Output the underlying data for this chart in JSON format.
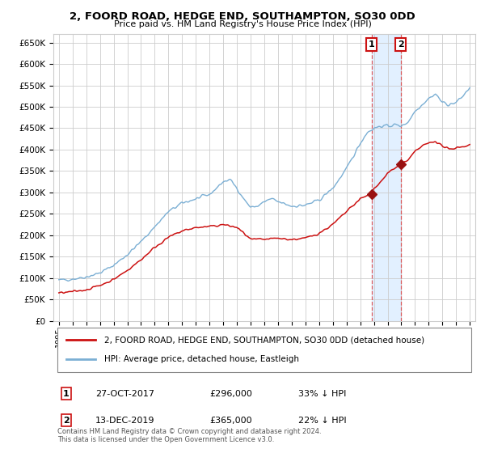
{
  "title": "2, FOORD ROAD, HEDGE END, SOUTHAMPTON, SO30 0DD",
  "subtitle": "Price paid vs. HM Land Registry's House Price Index (HPI)",
  "ylim": [
    0,
    670000
  ],
  "yticks": [
    0,
    50000,
    100000,
    150000,
    200000,
    250000,
    300000,
    350000,
    400000,
    450000,
    500000,
    550000,
    600000,
    650000
  ],
  "ytick_labels": [
    "£0",
    "£50K",
    "£100K",
    "£150K",
    "£200K",
    "£250K",
    "£300K",
    "£350K",
    "£400K",
    "£450K",
    "£500K",
    "£550K",
    "£600K",
    "£650K"
  ],
  "hpi_color": "#7bafd4",
  "price_color": "#cc1111",
  "marker_color": "#991111",
  "vline_color": "#dd4444",
  "highlight_color": "#ddeeff",
  "transaction1_x": 2017.833,
  "transaction1_y": 296000,
  "transaction2_x": 2019.958,
  "transaction2_y": 365000,
  "legend_line1": "2, FOORD ROAD, HEDGE END, SOUTHAMPTON, SO30 0DD (detached house)",
  "legend_line2": "HPI: Average price, detached house, Eastleigh",
  "t1_date": "27-OCT-2017",
  "t1_price": "£296,000",
  "t1_pct": "33% ↓ HPI",
  "t2_date": "13-DEC-2019",
  "t2_price": "£365,000",
  "t2_pct": "22% ↓ HPI",
  "footnote": "Contains HM Land Registry data © Crown copyright and database right 2024.\nThis data is licensed under the Open Government Licence v3.0.",
  "background_color": "#ffffff",
  "grid_color": "#cccccc",
  "xmin": 1994.6,
  "xmax": 2025.4
}
